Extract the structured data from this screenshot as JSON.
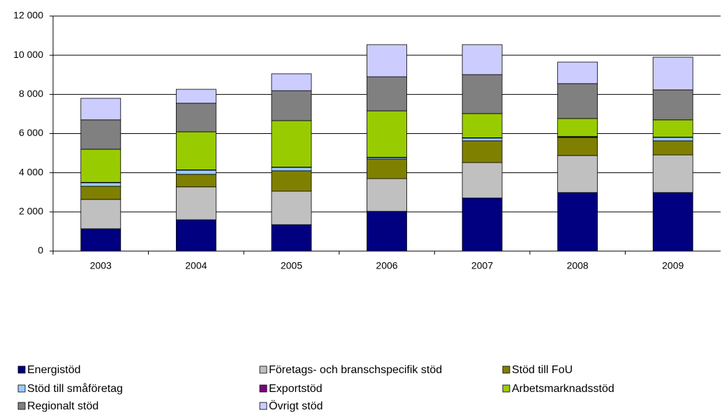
{
  "chart_data": {
    "type": "stacked_bar",
    "categories": [
      "2003",
      "2004",
      "2005",
      "2006",
      "2007",
      "2008",
      "2009"
    ],
    "series": [
      {
        "name": "Energistöd",
        "color": "#000080",
        "values": [
          1140,
          1600,
          1350,
          2030,
          2710,
          2990,
          2990
        ]
      },
      {
        "name": "Företags- och branschspecifik stöd",
        "color": "#c0c0c0",
        "values": [
          1500,
          1680,
          1710,
          1670,
          1810,
          1890,
          1920
        ]
      },
      {
        "name": "Stöd till FoU",
        "color": "#808000",
        "values": [
          670,
          640,
          1040,
          1000,
          1110,
          920,
          720
        ]
      },
      {
        "name": "Stöd till småföretag",
        "color": "#99ccff",
        "values": [
          180,
          210,
          170,
          70,
          140,
          30,
          170
        ]
      },
      {
        "name": "Exportstöd",
        "color": "#800080",
        "values": [
          20,
          20,
          20,
          20,
          20,
          20,
          20
        ]
      },
      {
        "name": "Arbetsmarknadsstöd",
        "color": "#99cc00",
        "values": [
          1690,
          1940,
          2370,
          2370,
          1230,
          920,
          880
        ]
      },
      {
        "name": "Regionalt stöd",
        "color": "#808080",
        "values": [
          1500,
          1460,
          1530,
          1740,
          1990,
          1780,
          1530
        ]
      },
      {
        "name": "Övrigt stöd",
        "color": "#ccccff",
        "values": [
          1100,
          710,
          860,
          1640,
          1530,
          1100,
          1670
        ]
      }
    ],
    "ylim": [
      0,
      12000
    ],
    "yticks": [
      0,
      {
        "value": 2000,
        "label": "2 000"
      },
      {
        "value": 4000,
        "label": "4 000"
      },
      {
        "value": 6000,
        "label": "6 000"
      },
      {
        "value": 8000,
        "label": "8 000"
      },
      {
        "value": 10000,
        "label": "10 000"
      },
      {
        "value": 12000,
        "label": "12 000"
      }
    ],
    "grid": true
  }
}
